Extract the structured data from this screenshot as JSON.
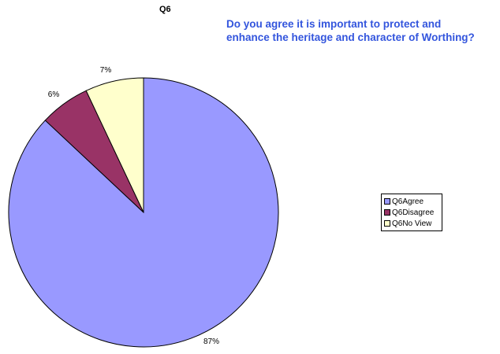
{
  "chart_data": {
    "type": "pie",
    "title": "Q6",
    "subtitle": "Do you agree it is important to protect and enhance the heritage and character of Worthing?",
    "categories": [
      "Q6Agree",
      "Q6Disagree",
      "Q6No View"
    ],
    "values": [
      87,
      6,
      7
    ],
    "value_labels": [
      "87%",
      "6%",
      "7%"
    ],
    "colors": [
      "#9999ff",
      "#993366",
      "#ffffcc"
    ],
    "legend": {
      "placement": "right",
      "entries": [
        "Q6Agree",
        "Q6Disagree",
        "Q6No View"
      ]
    }
  }
}
